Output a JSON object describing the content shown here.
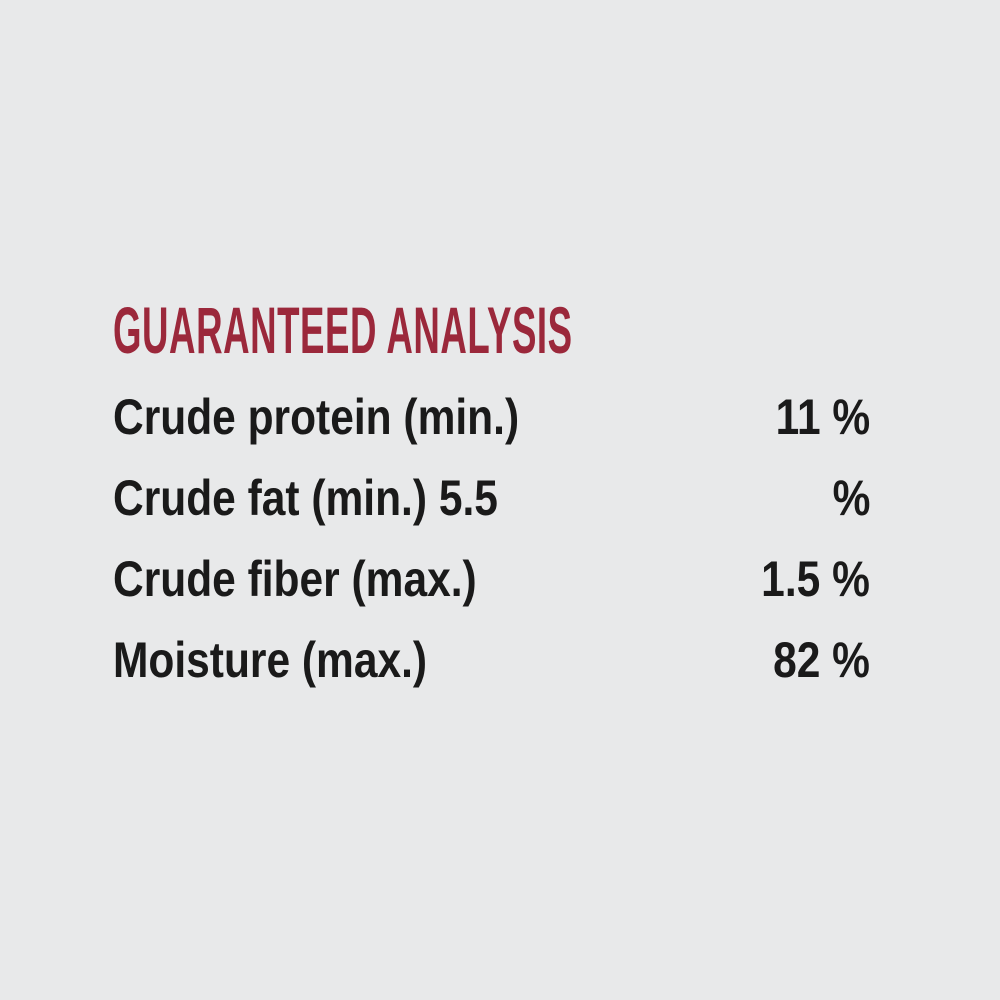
{
  "colors": {
    "background": "#e8e9ea",
    "title": "#9b283b",
    "text": "#1a1a1a"
  },
  "guaranteed_analysis": {
    "title": "GUARANTEED ANALYSIS",
    "rows": [
      {
        "label": "Crude protein (min.)",
        "value": "11 %"
      },
      {
        "label": "Crude fat (min.) 5.5",
        "value": "%"
      },
      {
        "label": "Crude fiber (max.)",
        "value": "1.5 %"
      },
      {
        "label": "Moisture (max.)",
        "value": "82 %"
      }
    ]
  }
}
